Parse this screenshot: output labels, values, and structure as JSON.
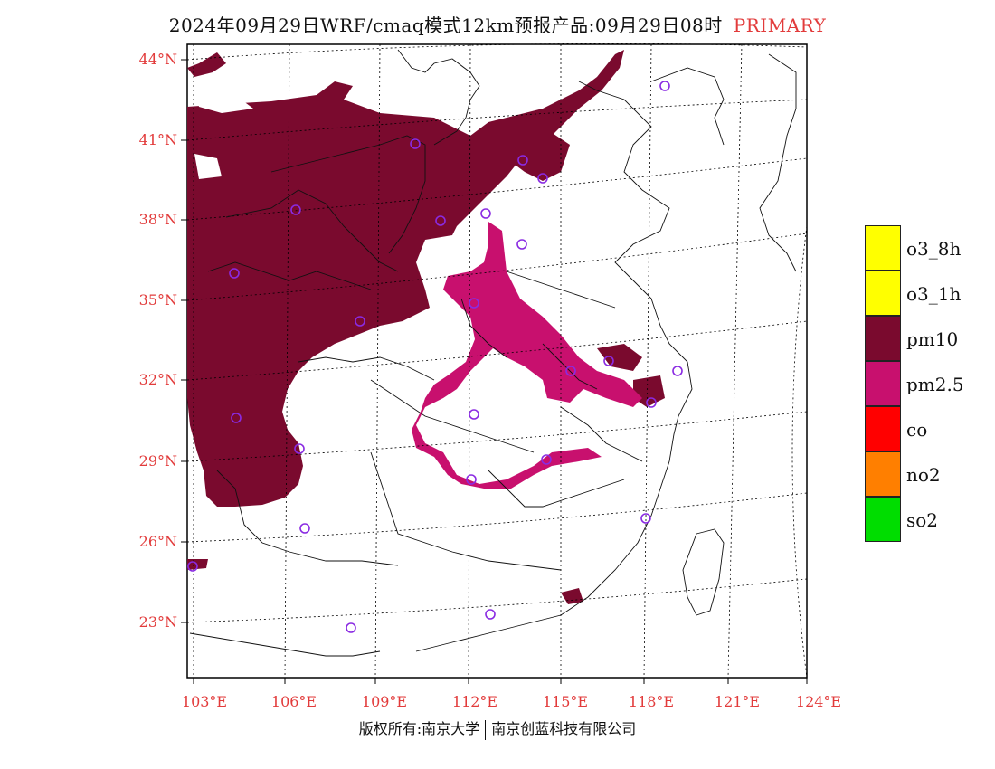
{
  "title": {
    "main": "2024年09月29日WRF/cmaq模式12km预报产品:09月29日08时",
    "tag": "PRIMARY"
  },
  "latitude_labels": [
    "44°N",
    "41°N",
    "38°N",
    "35°N",
    "32°N",
    "29°N",
    "26°N",
    "23°N"
  ],
  "longitude_labels": [
    "103°E",
    "106°E",
    "109°E",
    "112°E",
    "115°E",
    "118°E",
    "121°E",
    "124°E"
  ],
  "legend": [
    {
      "label": "o3_8h",
      "color": "#ffff00"
    },
    {
      "label": "o3_1h",
      "color": "#ffff00"
    },
    {
      "label": "pm10",
      "color": "#7a0a2e"
    },
    {
      "label": "pm2.5",
      "color": "#c8106e"
    },
    {
      "label": "co",
      "color": "#ff0000"
    },
    {
      "label": "no2",
      "color": "#ff7f00"
    },
    {
      "label": "so2",
      "color": "#00dd00"
    }
  ],
  "copyright": {
    "left": "版权所有:南京大学",
    "right": "南京创蓝科技有限公司"
  },
  "map_colors": {
    "pm10": "#7a0a2e",
    "pm25": "#c8106e",
    "station_marker": "#8a2be2",
    "frame": "#000000"
  }
}
